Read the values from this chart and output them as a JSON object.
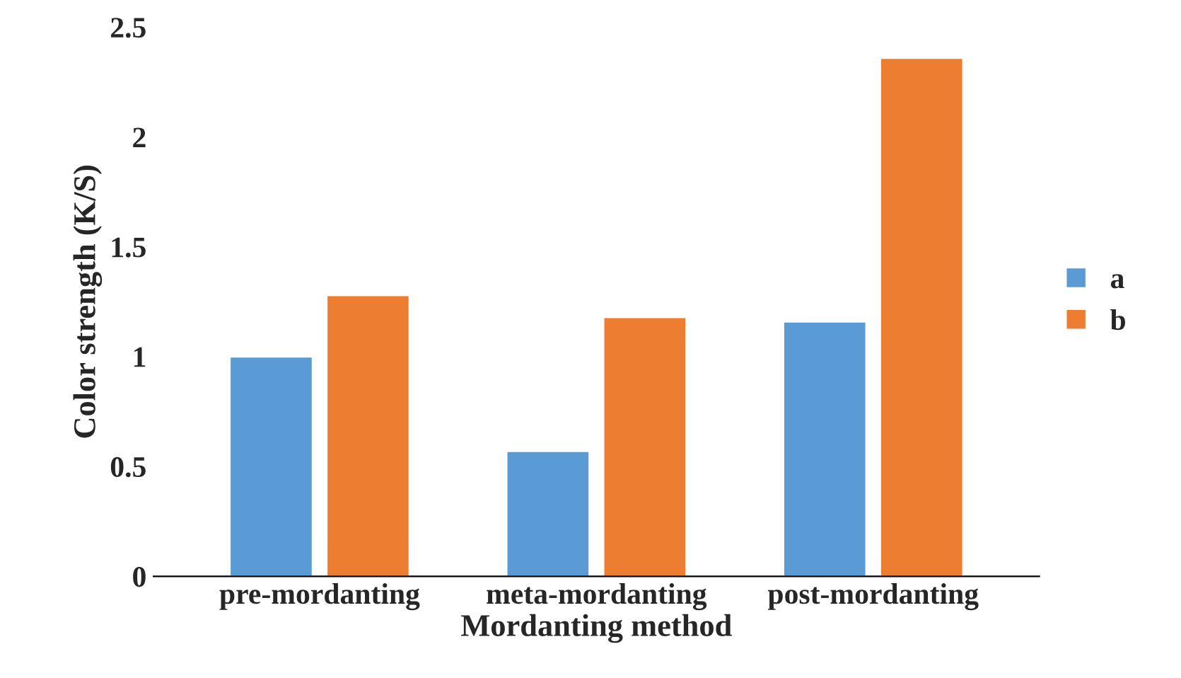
{
  "chart_data": {
    "type": "bar",
    "xlabel": "Mordanting method",
    "ylabel": "Color strength (K/S)",
    "categories": [
      "pre-mordanting",
      "meta-mordanting",
      "post-mordanting"
    ],
    "series": [
      {
        "name": "a",
        "color": "#5b9bd5",
        "values": [
          1.0,
          0.57,
          1.16
        ]
      },
      {
        "name": "b",
        "color": "#ed7d31",
        "values": [
          1.28,
          1.18,
          2.36
        ]
      }
    ],
    "ylim": [
      0,
      2.5
    ],
    "yticks": [
      0,
      0.5,
      1,
      1.5,
      2,
      2.5
    ],
    "grid": false,
    "legend": "right"
  }
}
